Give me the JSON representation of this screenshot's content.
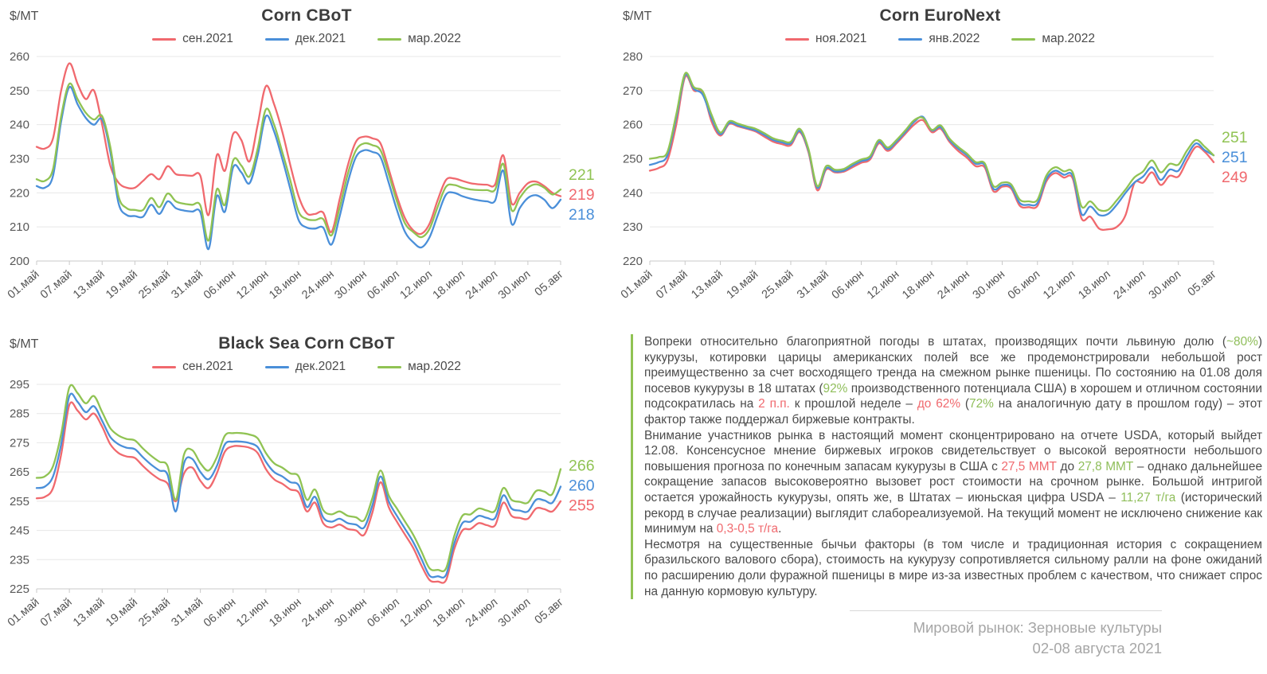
{
  "chart_data": [
    {
      "type": "line",
      "title": "Corn CBoT",
      "ylabel": "$/MT",
      "x_categories": [
        "01.май",
        "07.май",
        "13.май",
        "19.май",
        "25.май",
        "31.май",
        "06.июн",
        "12.июн",
        "18.июн",
        "24.июн",
        "30.июн",
        "06.июл",
        "12.июл",
        "18.июл",
        "24.июл",
        "30.июл",
        "05.авг"
      ],
      "ylim": [
        200,
        260
      ],
      "yticks": [
        260,
        250,
        240,
        230,
        220,
        210,
        200
      ],
      "grid": "horizontal",
      "legend_position": "top",
      "series": [
        {
          "name": "сен.2021",
          "color": "#F0696E",
          "end_label": "219",
          "values": [
            233.5,
            233,
            236,
            250,
            258,
            252,
            247.5,
            250,
            240,
            228,
            223,
            221.5,
            221.5,
            223.5,
            225.5,
            224,
            227.8,
            225.5,
            225.2,
            225,
            225,
            213.5,
            231,
            226.5,
            237.3,
            235.5,
            229.2,
            240,
            251.3,
            246,
            238,
            228,
            219,
            214,
            213.8,
            214.2,
            208.5,
            218,
            228,
            235,
            236.5,
            236,
            234.5,
            227,
            219,
            212.5,
            209,
            208,
            211,
            218,
            223.8,
            224.2,
            223.5,
            222.8,
            222.5,
            222.4,
            222.5,
            231,
            217,
            220,
            222.8,
            223.3,
            222,
            220,
            219
          ]
        },
        {
          "name": "дек.2021",
          "color": "#4A8FD9",
          "end_label": "218",
          "values": [
            222,
            221.5,
            225,
            241,
            251,
            246,
            242,
            240,
            241.5,
            232,
            217,
            213.5,
            213.2,
            213,
            216.5,
            213.8,
            217.5,
            215.5,
            214.8,
            214.5,
            214.3,
            203.5,
            219,
            214.5,
            227.5,
            226,
            222.8,
            231,
            242.5,
            238,
            230,
            221,
            212,
            209.8,
            209.5,
            209.8,
            204.8,
            213,
            223,
            230.5,
            232.5,
            232,
            230.5,
            223,
            215,
            208.5,
            205.5,
            204,
            207,
            213.5,
            219.5,
            220,
            219,
            218.3,
            217.8,
            217.5,
            217.8,
            226.5,
            211,
            215.5,
            218.5,
            219.3,
            218,
            215.5,
            218
          ]
        },
        {
          "name": "мар.2022",
          "color": "#90C353",
          "end_label": "221",
          "values": [
            224,
            223.5,
            227,
            242.5,
            252,
            247.5,
            243.5,
            241.5,
            242.5,
            233.5,
            219,
            215.5,
            215,
            215,
            218.5,
            215.8,
            219.8,
            217.5,
            216.8,
            216.5,
            216.3,
            206,
            221,
            216.5,
            229.5,
            228,
            224.8,
            233,
            244.5,
            240,
            232,
            223.5,
            214.5,
            212.3,
            212,
            212.3,
            207.5,
            215.5,
            225.5,
            232.5,
            234.5,
            234,
            232.5,
            225.5,
            217.5,
            211,
            208.5,
            207,
            209.5,
            216,
            221.8,
            222.3,
            221.5,
            221,
            220.8,
            220.8,
            221,
            228.5,
            215,
            218.5,
            221.5,
            222.5,
            221.5,
            219.5,
            221
          ]
        }
      ]
    },
    {
      "type": "line",
      "title": "Corn EuroNext",
      "ylabel": "$/MT",
      "x_categories": [
        "01.май",
        "07.май",
        "13.май",
        "19.май",
        "25.май",
        "31.май",
        "06.июн",
        "12.июн",
        "18.июн",
        "24.июн",
        "30.июн",
        "06.июл",
        "12.июл",
        "18.июл",
        "24.июл",
        "30.июл",
        "05.авг"
      ],
      "ylim": [
        220,
        280
      ],
      "yticks": [
        280,
        270,
        260,
        250,
        240,
        230,
        220
      ],
      "grid": "horizontal",
      "legend_position": "top",
      "series": [
        {
          "name": "ноя.2021",
          "color": "#F0696E",
          "end_label": "249",
          "values": [
            246.5,
            247.3,
            249.5,
            260,
            274,
            270,
            269.5,
            261,
            256.8,
            260.2,
            259.5,
            258.8,
            258,
            256.5,
            255,
            254.3,
            254,
            257.8,
            252,
            240.8,
            246.8,
            246,
            246.2,
            247.5,
            248.8,
            249.8,
            254.5,
            252.3,
            254.5,
            257.3,
            260,
            261.3,
            257.8,
            258.8,
            255,
            252.3,
            250.3,
            247.8,
            247.5,
            240.5,
            241.8,
            241.3,
            236.2,
            235.8,
            236.2,
            243.3,
            245.8,
            244.5,
            244.2,
            232.5,
            233,
            229.5,
            229.3,
            230,
            233.5,
            242.8,
            243,
            246,
            242.3,
            245,
            244.8,
            249.5,
            253.5,
            252,
            249
          ]
        },
        {
          "name": "янв.2022",
          "color": "#4A8FD9",
          "end_label": "251",
          "values": [
            248.2,
            249,
            251,
            262,
            274.5,
            270.5,
            268.8,
            262,
            257.2,
            260.5,
            259.8,
            259,
            258.3,
            257,
            255.5,
            254.8,
            254.5,
            258.2,
            252.5,
            241.5,
            247.2,
            246.3,
            246.5,
            248,
            249.3,
            250.3,
            255,
            252.8,
            255,
            257.8,
            260.8,
            262.3,
            258.3,
            259.3,
            255.5,
            253,
            251,
            248.5,
            248.2,
            241.2,
            242.3,
            241.8,
            237,
            236.5,
            237,
            244,
            246.5,
            245.3,
            245,
            233.8,
            236,
            233.5,
            233.8,
            236.5,
            240,
            243,
            244.8,
            247.5,
            243.8,
            246.8,
            246.5,
            251,
            254.5,
            252.5,
            251
          ]
        },
        {
          "name": "мар.2022",
          "color": "#90C353",
          "end_label": "251",
          "values": [
            250,
            250.5,
            252,
            263,
            275,
            271,
            269.8,
            263,
            257.7,
            261,
            260.3,
            259.5,
            258.8,
            257.5,
            256,
            255.3,
            255,
            258.8,
            253,
            242,
            247.8,
            246.8,
            247,
            248.5,
            249.8,
            250.8,
            255.5,
            253.3,
            255.5,
            258.3,
            261.3,
            262,
            258.5,
            259.8,
            256,
            253.5,
            251.5,
            249,
            248.7,
            242,
            243,
            242.5,
            238,
            237.5,
            238,
            245,
            247.5,
            246.3,
            246,
            236,
            237.5,
            235,
            235,
            237.8,
            241,
            244.5,
            246.3,
            249.5,
            246,
            248.5,
            248.3,
            252.5,
            255.5,
            253.5,
            251
          ]
        }
      ]
    },
    {
      "type": "line",
      "title": "Black Sea Corn CBoT",
      "ylabel": "$/MT",
      "x_categories": [
        "01.май",
        "07.май",
        "13.май",
        "19.май",
        "25.май",
        "31.май",
        "06.июн",
        "12.июн",
        "18.июн",
        "24.июн",
        "30.июн",
        "06.июл",
        "12.июл",
        "18.июл",
        "24.июл",
        "30.июл",
        "05.авг"
      ],
      "ylim": [
        225,
        295
      ],
      "yticks": [
        295,
        285,
        275,
        265,
        255,
        245,
        235,
        225
      ],
      "grid": "horizontal",
      "legend_position": "top",
      "series": [
        {
          "name": "сен.2021",
          "color": "#F0696E",
          "end_label": "255",
          "values": [
            256,
            256.5,
            259.5,
            271,
            288,
            286,
            283,
            285,
            280.5,
            274.5,
            271.5,
            270.3,
            269.8,
            267,
            264.5,
            262.5,
            261,
            255,
            264.5,
            266.5,
            262,
            259.5,
            264.5,
            272,
            273.8,
            273.8,
            273.3,
            271.5,
            266,
            262.5,
            261,
            259,
            258,
            251.5,
            254.5,
            247.5,
            246,
            247,
            245.5,
            245,
            243.5,
            251,
            261.5,
            253,
            248,
            243.5,
            239,
            233,
            228,
            227.5,
            228,
            238.5,
            245,
            245.5,
            247.5,
            246.8,
            246.8,
            254.5,
            250,
            249.3,
            249,
            252.5,
            252.3,
            251.5,
            255
          ]
        },
        {
          "name": "дек.2021",
          "color": "#4A8FD9",
          "end_label": "260",
          "values": [
            259.5,
            260,
            263.5,
            274.5,
            291,
            289,
            285.5,
            287.5,
            282.5,
            277,
            274.5,
            273.3,
            272.8,
            270,
            267.5,
            265.5,
            264,
            251.5,
            268,
            269.5,
            265,
            262.5,
            267,
            274.5,
            275.4,
            275.4,
            274.9,
            273.5,
            268.5,
            265,
            263.5,
            261.5,
            260.5,
            253,
            256.5,
            249.5,
            248,
            249,
            247.5,
            247,
            246,
            253.5,
            263.5,
            255,
            250,
            245.5,
            241,
            235.3,
            229.5,
            229.3,
            229.8,
            240.5,
            247.5,
            248,
            250,
            249.3,
            249.3,
            257,
            252.5,
            251.8,
            251.5,
            255.5,
            255.3,
            254.5,
            260
          ]
        },
        {
          "name": "мар.2022",
          "color": "#90C353",
          "end_label": "266",
          "values": [
            263,
            263.5,
            267,
            278,
            294,
            292,
            288.5,
            291,
            285.5,
            280,
            277.5,
            276.3,
            275.8,
            273,
            270.5,
            268.5,
            267,
            255.5,
            271,
            272.5,
            268,
            265.5,
            270,
            277.5,
            278.3,
            278.3,
            277.8,
            276.5,
            271.5,
            268,
            266.5,
            264.5,
            263.5,
            255.5,
            259,
            252,
            250.5,
            251.5,
            250,
            249.5,
            248.5,
            256,
            265.5,
            257,
            252.5,
            248,
            243.5,
            237.8,
            232,
            231.5,
            232,
            243,
            250,
            250.5,
            252.5,
            251.8,
            251.8,
            259.5,
            255.5,
            254.8,
            254.5,
            258.5,
            258.3,
            257.5,
            266
          ]
        }
      ]
    }
  ],
  "commentary": {
    "accent_border": "#90C353",
    "colors": {
      "red": "#F0696E",
      "green": "#8FBE5A"
    },
    "paragraphs": [
      [
        {
          "t": "Вопреки относительно благоприятной погоды в штатах, производящих почти львиную долю ("
        },
        {
          "t": "~80%",
          "c": "green"
        },
        {
          "t": ") кукурузы, котировки царицы американских полей все же продемонстрировали небольшой рост преимущественно за счет восходящего тренда на смежном рынке пшеницы. По состоянию на 01.08 доля посевов кукурузы в 18 штатах ("
        },
        {
          "t": "92%",
          "c": "green"
        },
        {
          "t": " производственного потенциала США) в хорошем и отличном состоянии подсократилась на "
        },
        {
          "t": "2 п.п.",
          "c": "red"
        },
        {
          "t": " к прошлой неделе – "
        },
        {
          "t": "до 62%",
          "c": "red"
        },
        {
          "t": " ("
        },
        {
          "t": "72%",
          "c": "green"
        },
        {
          "t": " на аналогичную дату в прошлом году) – этот фактор также поддержал биржевые контракты."
        }
      ],
      [
        {
          "t": "Внимание участников рынка в настоящий момент сконцентрировано на отчете USDA, который выйдет 12.08. Консенсусное мнение биржевых игроков свидетельствует о высокой вероятности небольшого повышения прогноза по конечным запасам кукурузы в США с "
        },
        {
          "t": "27,5 ММТ",
          "c": "red"
        },
        {
          "t": " до "
        },
        {
          "t": "27,8 ММТ",
          "c": "green"
        },
        {
          "t": " – однако дальнейшее сокращение запасов высоковероятно вызовет рост стоимости на срочном рынке. Большой интригой остается урожайность кукурузы, опять же, в Штатах – июньская цифра USDA – "
        },
        {
          "t": "11,27 т/га",
          "c": "green"
        },
        {
          "t": " (исторический рекорд в случае реализации) выглядит слабореализуемой. На текущий момент не исключено снижение как минимум на "
        },
        {
          "t": "0,3-0,5 т/га",
          "c": "red"
        },
        {
          "t": "."
        }
      ],
      [
        {
          "t": "Несмотря на существенные бычьи факторы (в том числе и традиционная история с сокращением бразильского валового сбора), стоимость на кукурузу сопротивляется сильному ралли на фоне ожиданий по расширению доли фуражной пшеницы в мире из-за известных проблем с качеством, что снижает спрос на данную кормовую культуру."
        }
      ]
    ]
  },
  "footer": {
    "line1": "Мировой рынок: Зерновые культуры",
    "line2": "02-08 августа 2021"
  }
}
